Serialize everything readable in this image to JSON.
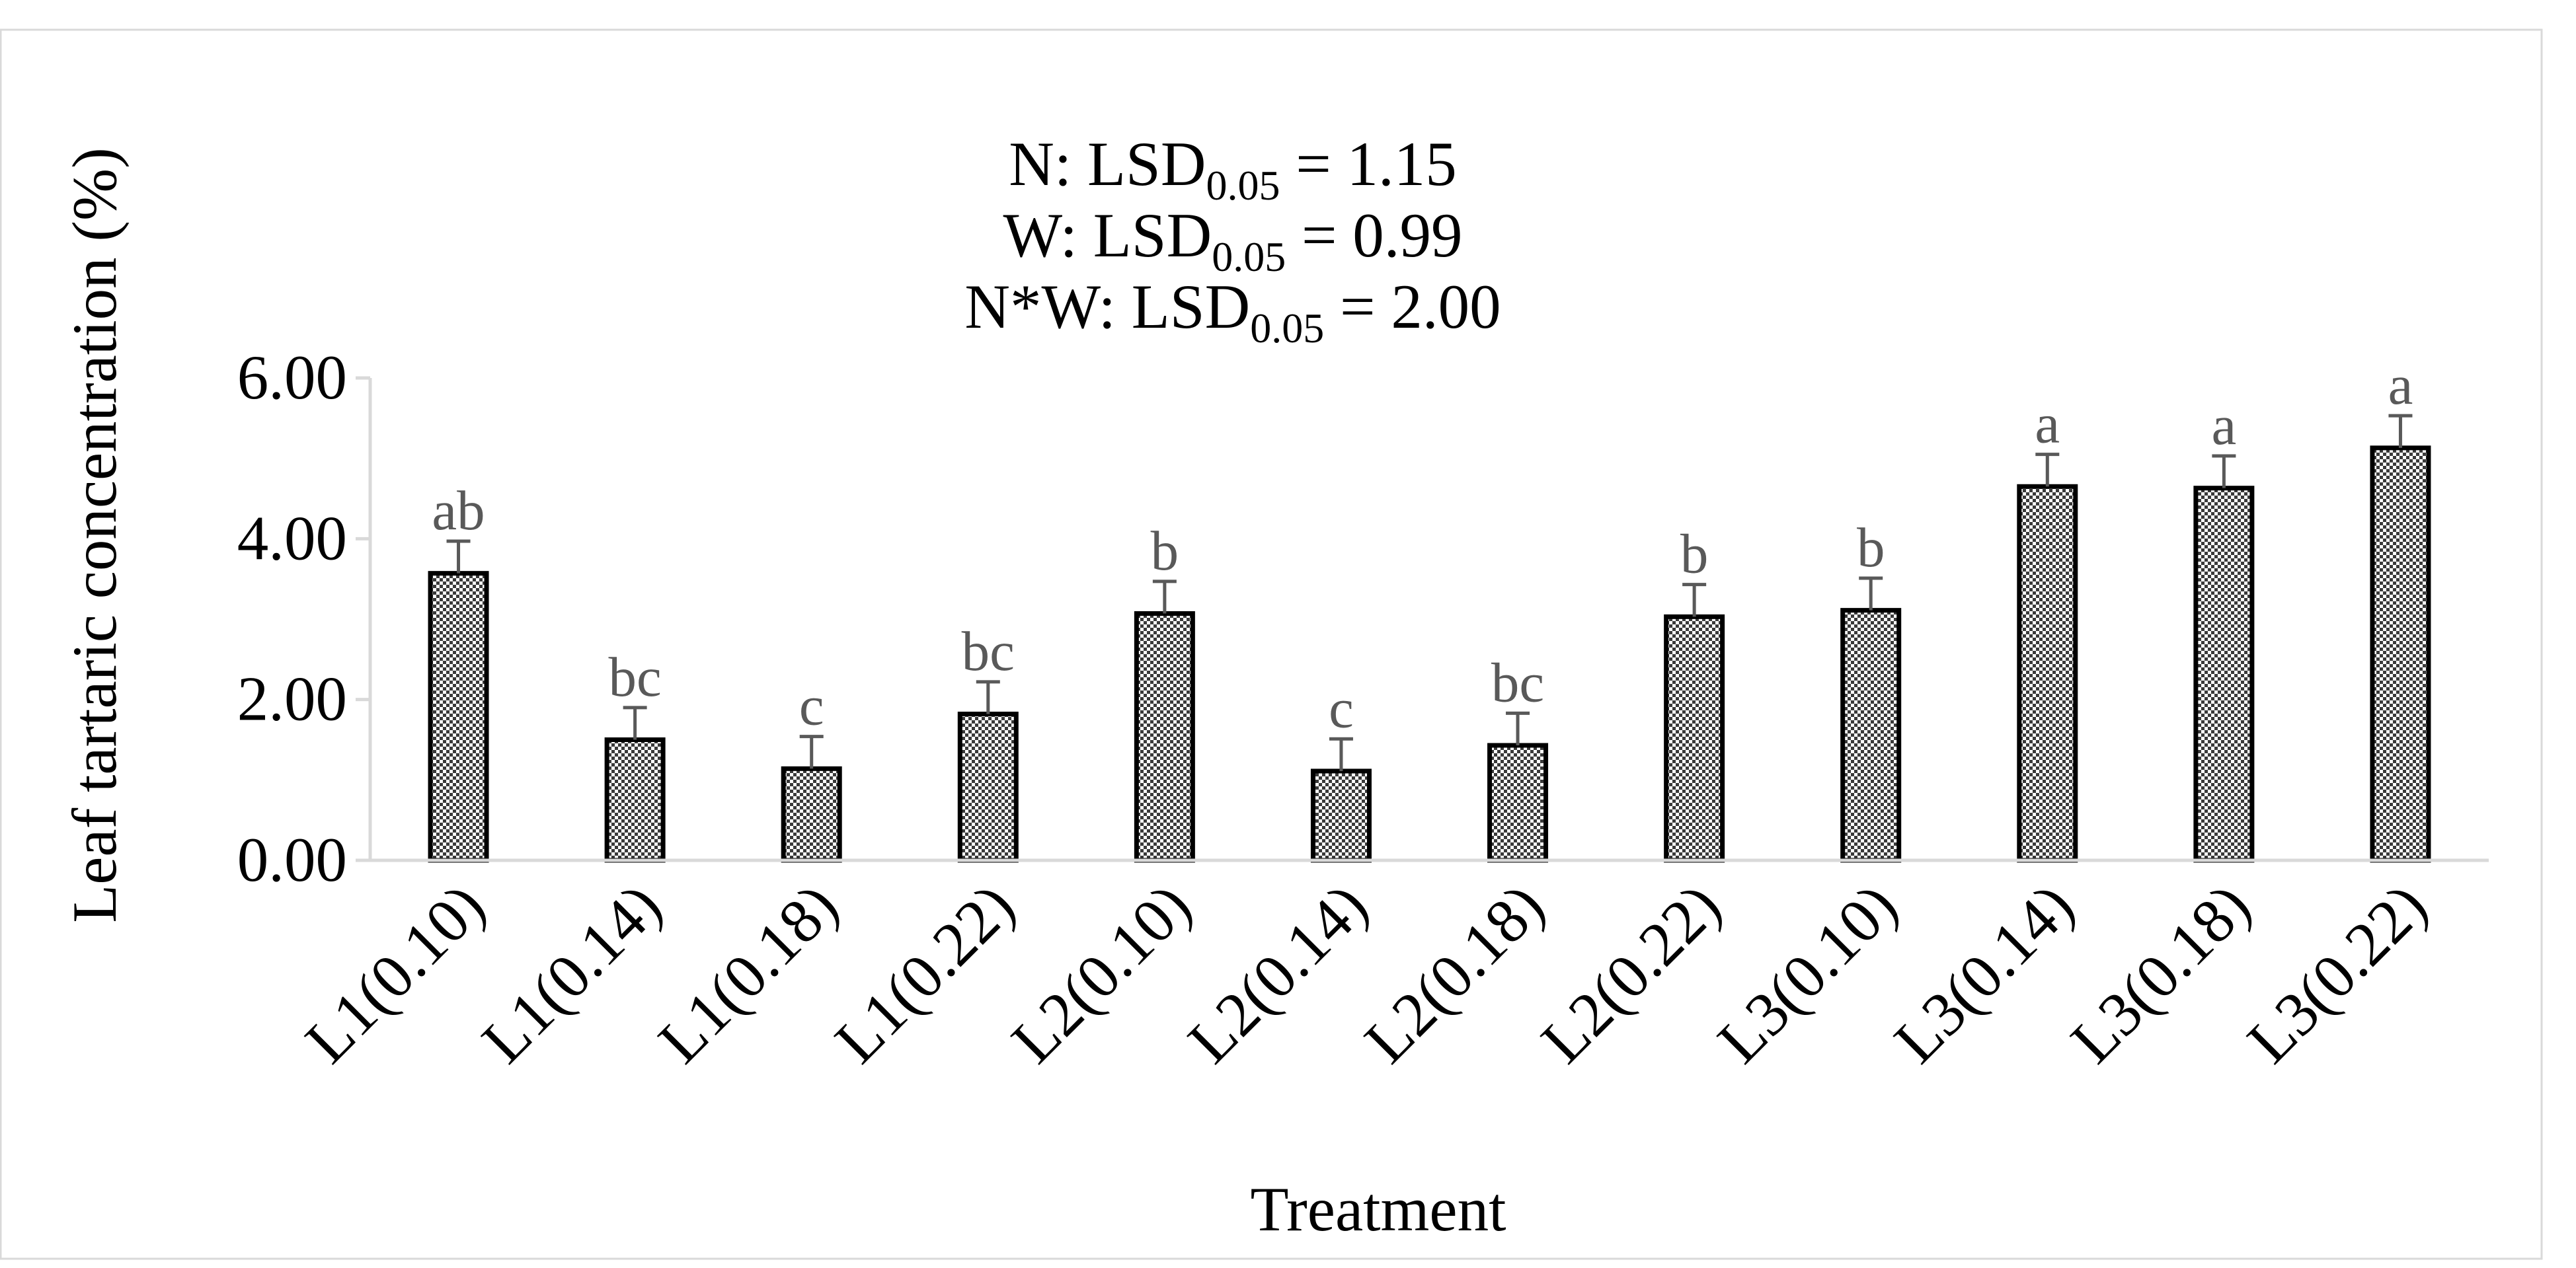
{
  "chart_data": {
    "type": "bar",
    "title": "",
    "xlabel": "Treatment",
    "ylabel": "Leaf tartaric concentration (%)",
    "ylim": [
      0,
      6
    ],
    "y_ticks": [
      0,
      2,
      4,
      6
    ],
    "y_tick_labels": [
      "0.00",
      "2.00",
      "4.00",
      "6.00"
    ],
    "grid": false,
    "legend": "none",
    "categories": [
      "L1(0.10)",
      "L1(0.14)",
      "L1(0.18)",
      "L1(0.22)",
      "L2(0.10)",
      "L2(0.14)",
      "L2(0.18)",
      "L2(0.22)",
      "L3(0.10)",
      "L3(0.14)",
      "L3(0.18)",
      "L3(0.22)"
    ],
    "values": [
      3.57,
      1.5,
      1.14,
      1.82,
      3.07,
      1.11,
      1.43,
      3.03,
      3.11,
      4.65,
      4.63,
      5.13
    ],
    "error": [
      0.4,
      0.4,
      0.4,
      0.4,
      0.4,
      0.4,
      0.4,
      0.4,
      0.4,
      0.4,
      0.4,
      0.4
    ],
    "significance_letters": [
      "ab",
      "bc",
      "c",
      "bc",
      "b",
      "c",
      "bc",
      "b",
      "b",
      "a",
      "a",
      "a"
    ],
    "annotations": [
      {
        "prefix": "N: LSD",
        "subscript": "0.05",
        "suffix": " = 1.15"
      },
      {
        "prefix": "W: LSD",
        "subscript": "0.05",
        "suffix": " = 0.99"
      },
      {
        "prefix": "N*W: LSD",
        "subscript": "0.05",
        "suffix": " = 2.00"
      }
    ]
  },
  "colors": {
    "bar_fill": "#8a8a8a",
    "bar_stroke": "#000000",
    "axis": "#d9d9d9",
    "text": "#000000",
    "letter_text": "#595959",
    "error_bar": "#595959",
    "frame": "#d9d9d9"
  }
}
